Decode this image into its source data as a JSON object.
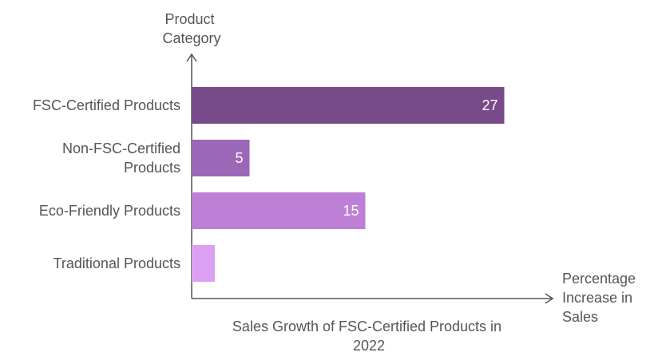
{
  "chart_data": {
    "type": "bar",
    "orientation": "horizontal",
    "title": "Sales Growth of FSC-Certified Products in 2022",
    "ylabel": "Product Category",
    "xlabel": "Percentage Increase in Sales",
    "categories": [
      "FSC-Certified Products",
      "Non-FSC-Certified Products",
      "Eco-Friendly Products",
      "Traditional Products"
    ],
    "values": [
      27,
      5,
      15,
      2
    ],
    "value_labels": [
      "27",
      "5",
      "15",
      ""
    ],
    "colors": [
      "#774a8a",
      "#9b68b7",
      "#bd80d6",
      "#dca0f2"
    ],
    "xlim": [
      0,
      30
    ],
    "grid": false,
    "legend": "none"
  }
}
